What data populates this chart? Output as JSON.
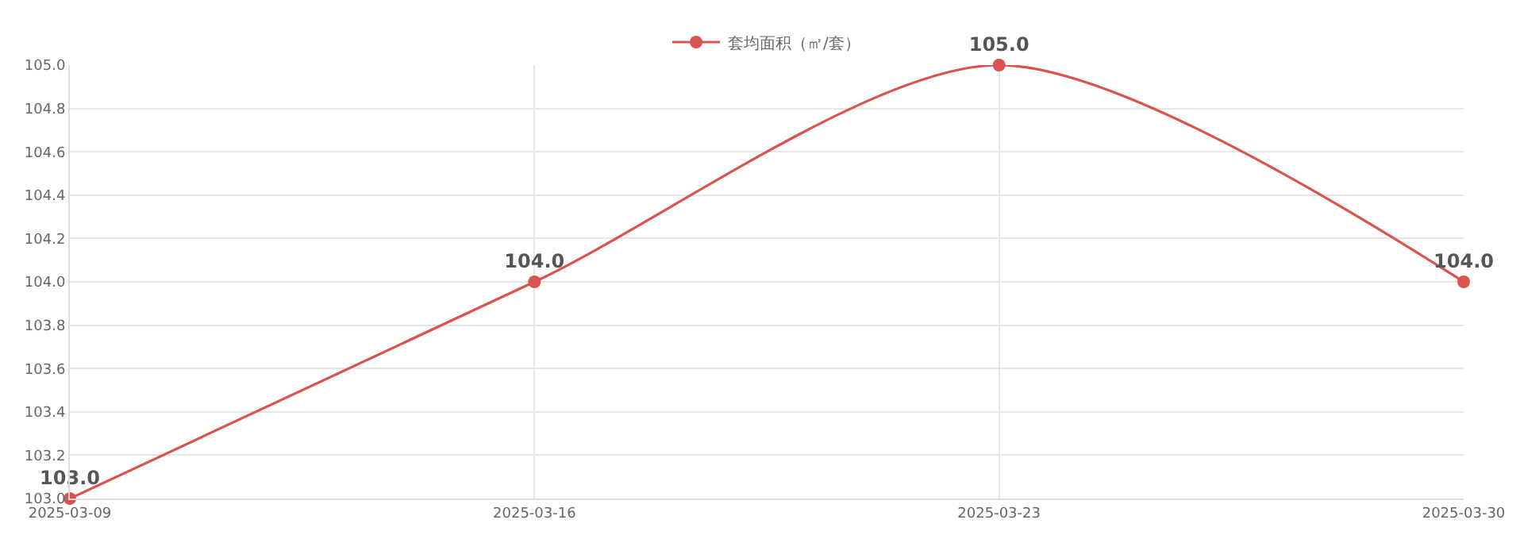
{
  "chart_data": {
    "type": "line",
    "categories": [
      "2025-03-09",
      "2025-03-16",
      "2025-03-23",
      "2025-03-30"
    ],
    "series": [
      {
        "name": "套均面积（㎡/套）",
        "color": "#d9534f",
        "values": [
          103.0,
          104.0,
          105.0,
          104.0
        ],
        "value_labels": [
          "103.0",
          "104.0",
          "105.0",
          "104.0"
        ]
      }
    ],
    "ylim": [
      103.0,
      105.0
    ],
    "yticks": [
      {
        "value": 103.0,
        "label": "103.0"
      },
      {
        "value": 103.2,
        "label": "103.2"
      },
      {
        "value": 103.4,
        "label": "103.4"
      },
      {
        "value": 103.6,
        "label": "103.6"
      },
      {
        "value": 103.8,
        "label": "103.8"
      },
      {
        "value": 104.0,
        "label": "104.0"
      },
      {
        "value": 104.2,
        "label": "104.2"
      },
      {
        "value": 104.4,
        "label": "104.4"
      },
      {
        "value": 104.6,
        "label": "104.6"
      },
      {
        "value": 104.8,
        "label": "104.8"
      },
      {
        "value": 105.0,
        "label": "105.0"
      }
    ],
    "grid": true,
    "legend": "top",
    "marker": "circle",
    "line_style": "solid"
  }
}
